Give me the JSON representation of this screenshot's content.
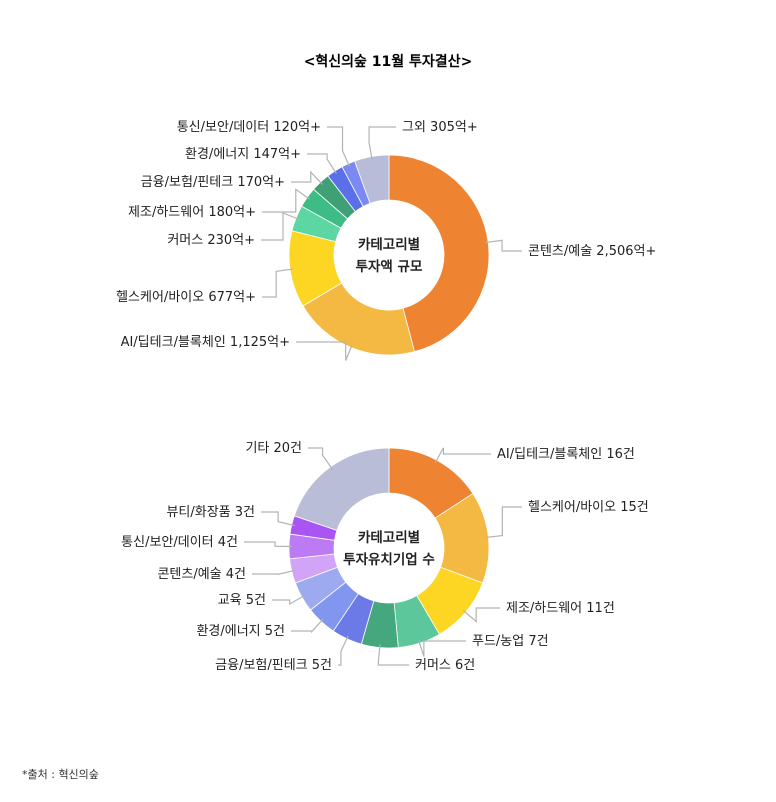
{
  "title": "<혁신의숲 11월 투자결산>",
  "source": "*출처 : 혁신의숲",
  "chart_data": [
    {
      "type": "pie",
      "center_label": [
        "카테고리별",
        "투자액 규모"
      ],
      "slices": [
        {
          "label": "콘텐츠/예술 2,506억+",
          "value": 2506,
          "color": "#EE8332"
        },
        {
          "label": "AI/딥테크/블록체인 1,125억+",
          "value": 1125,
          "color": "#F4B942"
        },
        {
          "label": "헬스케어/바이오 677억+",
          "value": 677,
          "color": "#FDD523"
        },
        {
          "label": "커머스 230억+",
          "value": 230,
          "color": "#5CD6A2"
        },
        {
          "label": "제조/하드웨어 180억+",
          "value": 180,
          "color": "#3DBC86"
        },
        {
          "label": "금융/보험/핀테크 170억+",
          "value": 170,
          "color": "#3F9F75"
        },
        {
          "label": "환경/에너지 147억+",
          "value": 147,
          "color": "#5B6FE9"
        },
        {
          "label": "통신/보안/데이터 120억+",
          "value": 120,
          "color": "#7B8AF2"
        },
        {
          "label": "그외 305억+",
          "value": 305,
          "color": "#B9BCD8"
        }
      ]
    },
    {
      "type": "pie",
      "center_label": [
        "카테고리별",
        "투자유치기업 수"
      ],
      "slices": [
        {
          "label": "AI/딥테크/블록체인 16건",
          "value": 16,
          "color": "#EE8332"
        },
        {
          "label": "헬스케어/바이오 15건",
          "value": 15,
          "color": "#F4B942"
        },
        {
          "label": "제조/하드웨어 11건",
          "value": 11,
          "color": "#FDD523"
        },
        {
          "label": "푸드/농업 7건",
          "value": 7,
          "color": "#5CC79A"
        },
        {
          "label": "커머스 6건",
          "value": 6,
          "color": "#45A77E"
        },
        {
          "label": "금융/보험/핀테크 5건",
          "value": 5,
          "color": "#6B7AE6"
        },
        {
          "label": "환경/에너지 5건",
          "value": 5,
          "color": "#8196EE"
        },
        {
          "label": "교육 5건",
          "value": 5,
          "color": "#9DAAF0"
        },
        {
          "label": "콘텐츠/예술 4건",
          "value": 4,
          "color": "#D2A4F7"
        },
        {
          "label": "통신/보안/데이터 4건",
          "value": 4,
          "color": "#BD7AF5"
        },
        {
          "label": "뷰티/화장품 3건",
          "value": 3,
          "color": "#A855F3"
        },
        {
          "label": "기타 20건",
          "value": 20,
          "color": "#BABDD8"
        }
      ]
    }
  ]
}
